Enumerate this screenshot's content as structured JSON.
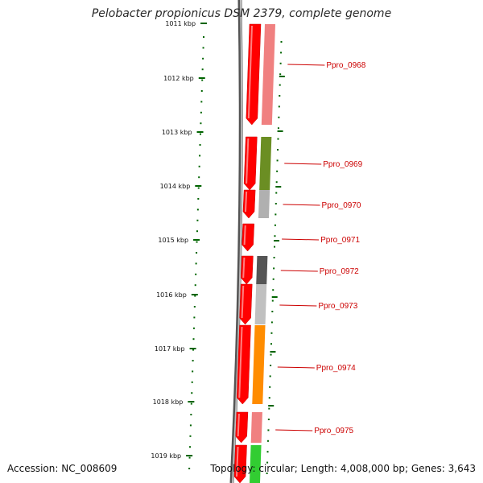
{
  "title": "Pelobacter propionicus DSM 2379, complete genome",
  "accession": "Accession: NC_008609",
  "summary": "Topology: circular; Length: 4,008,000 bp; Genes: 3,643",
  "ticks": [
    "1011 kbp",
    "1012 kbp",
    "1013 kbp",
    "1014 kbp",
    "1015 kbp",
    "1016 kbp",
    "1017 kbp",
    "1018 kbp",
    "1019 kbp"
  ],
  "genes": [
    {
      "label": "Ppro_0968",
      "cog_color": "#f08080"
    },
    {
      "label": "Ppro_0969",
      "cog_color": "#6b8e23"
    },
    {
      "label": "Ppro_0970",
      "cog_color": "#b0b0b0"
    },
    {
      "label": "Ppro_0971",
      "cog_color": ""
    },
    {
      "label": "Ppro_0972",
      "cog_color": "#555555"
    },
    {
      "label": "Ppro_0973",
      "cog_color": "#c0c0c0"
    },
    {
      "label": "Ppro_0974",
      "cog_color": "#ff8c00"
    },
    {
      "label": "Ppro_0975",
      "cog_color": "#f08080"
    },
    {
      "label": "",
      "cog_color": "#32cd32"
    }
  ],
  "colors": {
    "strand_arrow": "#ff0000",
    "backbone": "#808080",
    "tick": "#006400"
  }
}
